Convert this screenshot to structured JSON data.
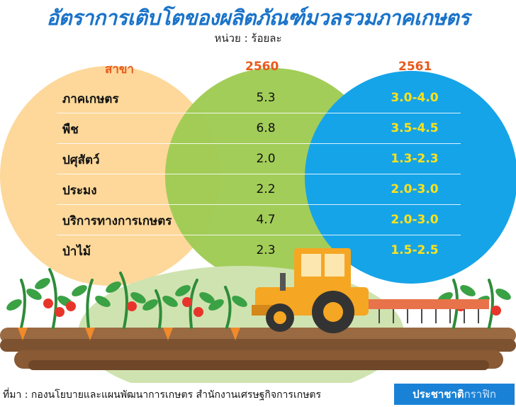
{
  "title": "อัตราการเติบโตของผลิตภัณฑ์มวลรวมภาคเกษตร",
  "unit": "หน่วย : ร้อยละ",
  "chart_data": {
    "type": "table",
    "columns": [
      "สาขา",
      "2560",
      "2561"
    ],
    "rows": [
      {
        "sector": "ภาคเกษตร",
        "y2560": "5.3",
        "y2561": "3.0-4.0"
      },
      {
        "sector": "พืช",
        "y2560": "6.8",
        "y2561": "3.5-4.5"
      },
      {
        "sector": "ปศุสัตว์",
        "y2560": "2.0",
        "y2561": "1.3-2.3"
      },
      {
        "sector": "ประมง",
        "y2560": "2.2",
        "y2561": "2.0-3.0"
      },
      {
        "sector": "บริการทางการเกษตร",
        "y2560": "4.7",
        "y2561": "2.0-3.0"
      },
      {
        "sector": "ป่าไม้",
        "y2560": "2.3",
        "y2561": "1.5-2.5"
      }
    ]
  },
  "source": "ที่มา : กองนโยบายและแผนพัฒนาการเกษตร สำนักงานเศรษฐกิจการเกษตร",
  "brand": {
    "main": "ประชาชาติ",
    "sub": "กราฟิก"
  },
  "colors": {
    "title": "#1a73c9",
    "header": "#e85a1b",
    "circle_sector": "#fdd89a",
    "circle_2560": "#9fcb54",
    "circle_2561": "#16a4e8",
    "value_2561": "#ffe21a",
    "soil": "#8a5a35"
  }
}
